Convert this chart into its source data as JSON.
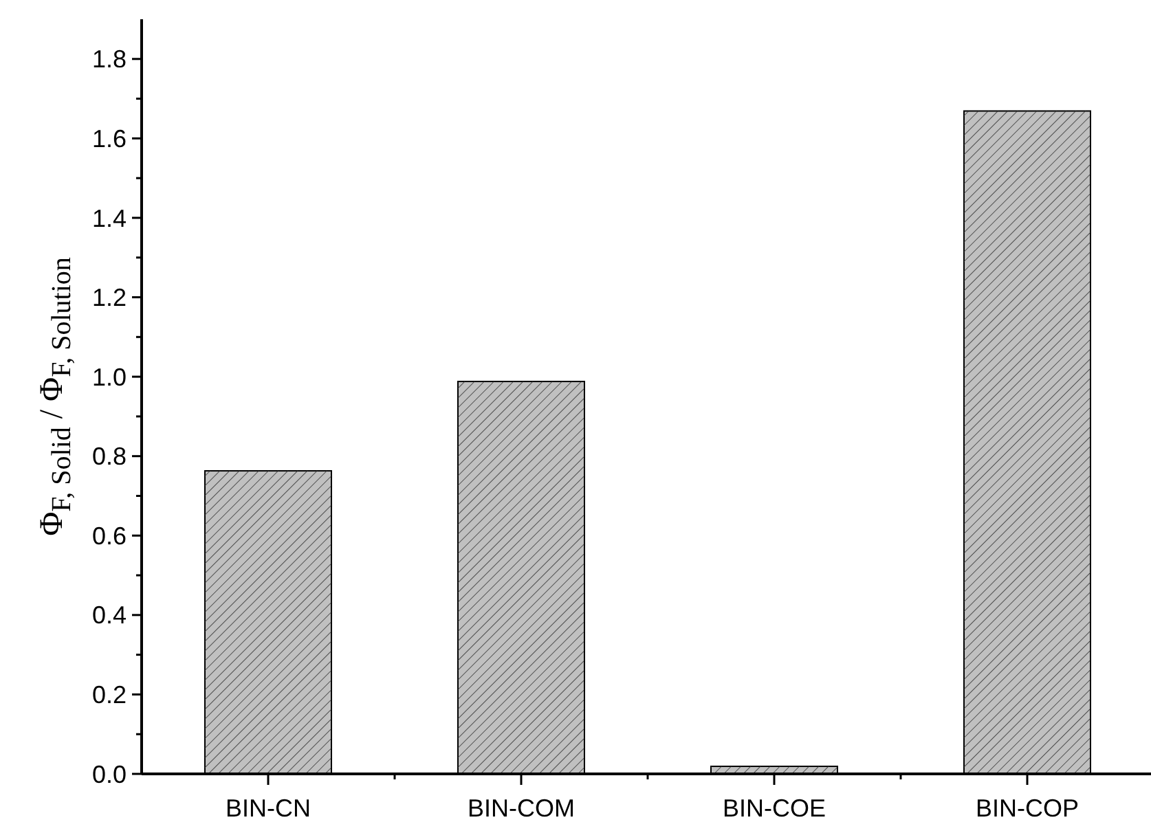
{
  "chart_data": {
    "type": "bar",
    "ylabel": "Φ$_{F, Solid}$ / Φ$_{F, Solution}$",
    "categories": [
      "BIN-CN",
      "BIN-COM",
      "BIN-COE",
      "BIN-COP"
    ],
    "values": [
      0.763,
      0.988,
      0.019,
      1.669
    ],
    "color": "#c0c0c0",
    "ylim": [
      0,
      1.9
    ],
    "yticks": [
      {
        "value": 0,
        "label": "0.0"
      },
      {
        "value": 0.1,
        "label": null
      },
      {
        "value": 0.2,
        "label": "0.2"
      },
      {
        "value": 0.3,
        "label": null
      },
      {
        "value": 0.4,
        "label": "0.4"
      },
      {
        "value": 0.5,
        "label": null
      },
      {
        "value": 0.6,
        "label": "0.6"
      },
      {
        "value": 0.7,
        "label": null
      },
      {
        "value": 0.8,
        "label": "0.8"
      },
      {
        "value": 0.9,
        "label": null
      },
      {
        "value": 1.0,
        "label": "1.0"
      },
      {
        "value": 1.1,
        "label": null
      },
      {
        "value": 1.2,
        "label": "1.2"
      },
      {
        "value": 1.3,
        "label": null
      },
      {
        "value": 1.4,
        "label": "1.4"
      },
      {
        "value": 1.5,
        "label": null
      },
      {
        "value": 1.6,
        "label": "1.6"
      },
      {
        "value": 1.7,
        "label": null
      },
      {
        "value": 1.8,
        "label": "1.8"
      }
    ],
    "grid": false
  }
}
